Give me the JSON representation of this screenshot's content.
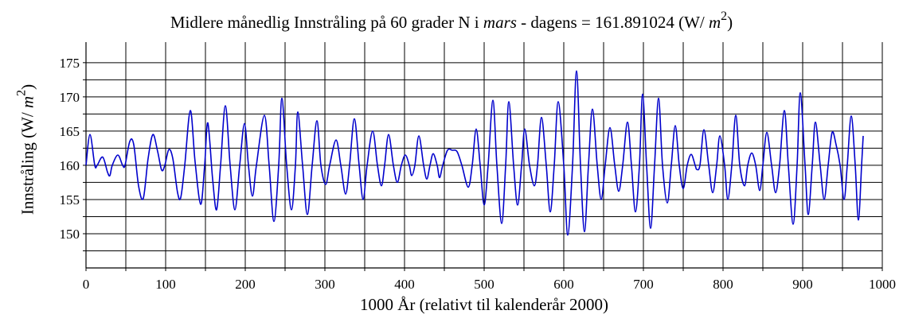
{
  "chart_data": {
    "type": "line",
    "title_prefix": "Midlere månedlig Innstråling på 60 grader N i ",
    "title_month": "mars",
    "title_suffix": " - dagens = 161.891024 (W/ ",
    "title_unit": "m",
    "title_exp": "2",
    "title_close": ")",
    "xlabel": "1000 År (relativt til kalenderår 2000)",
    "ylabel_text": "Innstråling  (W/ ",
    "ylabel_unit": "m",
    "ylabel_exp": "2",
    "ylabel_close": ")",
    "xlim": [
      0,
      1000
    ],
    "ylim": [
      145,
      178
    ],
    "x_ticks": [
      0,
      100,
      200,
      300,
      400,
      500,
      600,
      700,
      800,
      900,
      1000
    ],
    "y_ticks": [
      150,
      155,
      160,
      165,
      170,
      175
    ],
    "grid": true,
    "series_color": "#0000cc",
    "series": [
      {
        "name": "",
        "points": [
          [
            0,
            160
          ],
          [
            5,
            164.5
          ],
          [
            11,
            160
          ],
          [
            14,
            160
          ],
          [
            21,
            161.2
          ],
          [
            27,
            159
          ],
          [
            30,
            158.5
          ],
          [
            33,
            160
          ],
          [
            40,
            161.5
          ],
          [
            46,
            160
          ],
          [
            49,
            160
          ],
          [
            55,
            163.5
          ],
          [
            60,
            163
          ],
          [
            66,
            157
          ],
          [
            72,
            155.2
          ],
          [
            78,
            161
          ],
          [
            84,
            164.5
          ],
          [
            90,
            162
          ],
          [
            95,
            159.3
          ],
          [
            99,
            160
          ],
          [
            104,
            162.3
          ],
          [
            109,
            161
          ],
          [
            115,
            156
          ],
          [
            119,
            155.3
          ],
          [
            124,
            160
          ],
          [
            131,
            168
          ],
          [
            137,
            160.5
          ],
          [
            144,
            154.3
          ],
          [
            149,
            160
          ],
          [
            153,
            166.2
          ],
          [
            159,
            158
          ],
          [
            164,
            153.5
          ],
          [
            169,
            160
          ],
          [
            175,
            168.7
          ],
          [
            181,
            160
          ],
          [
            187,
            153.5
          ],
          [
            193,
            160
          ],
          [
            199,
            166.1
          ],
          [
            204,
            160
          ],
          [
            209,
            155.5
          ],
          [
            214,
            160
          ],
          [
            224,
            167.3
          ],
          [
            230,
            160
          ],
          [
            236,
            151.8
          ],
          [
            242,
            160
          ],
          [
            246,
            169.8
          ],
          [
            252,
            160
          ],
          [
            258,
            153.5
          ],
          [
            263,
            160
          ],
          [
            266,
            167.8
          ],
          [
            272,
            160
          ],
          [
            278,
            152.8
          ],
          [
            284,
            160
          ],
          [
            290,
            166.5
          ],
          [
            295,
            160
          ],
          [
            301,
            157.2
          ],
          [
            306,
            160
          ],
          [
            314,
            163.7
          ],
          [
            320,
            160
          ],
          [
            326,
            155.8
          ],
          [
            331,
            160
          ],
          [
            337,
            166.8
          ],
          [
            343,
            160
          ],
          [
            348,
            155
          ],
          [
            353,
            160
          ],
          [
            360,
            165
          ],
          [
            366,
            160
          ],
          [
            371,
            157
          ],
          [
            375,
            160
          ],
          [
            380,
            164.5
          ],
          [
            386,
            160
          ],
          [
            391,
            157.5
          ],
          [
            396,
            160
          ],
          [
            401,
            161.5
          ],
          [
            406,
            160
          ],
          [
            409,
            158.5
          ],
          [
            413,
            160
          ],
          [
            418,
            164.3
          ],
          [
            424,
            160
          ],
          [
            428,
            158
          ],
          [
            432,
            160
          ],
          [
            436,
            161.7
          ],
          [
            441,
            160
          ],
          [
            444,
            158.2
          ],
          [
            448,
            160
          ],
          [
            454,
            162.2
          ],
          [
            460,
            162.2
          ],
          [
            466,
            162
          ],
          [
            472,
            160
          ],
          [
            480,
            156.8
          ],
          [
            485,
            160
          ],
          [
            490,
            165.3
          ],
          [
            495,
            160
          ],
          [
            500,
            154.2
          ],
          [
            505,
            160
          ],
          [
            511,
            169.5
          ],
          [
            516,
            160
          ],
          [
            522,
            151.5
          ],
          [
            527,
            160
          ],
          [
            531,
            169.3
          ],
          [
            537,
            160
          ],
          [
            542,
            154.2
          ],
          [
            547,
            160
          ],
          [
            551,
            165.3
          ],
          [
            557,
            160
          ],
          [
            563,
            157
          ],
          [
            567,
            160
          ],
          [
            572,
            167
          ],
          [
            578,
            160
          ],
          [
            583,
            153.2
          ],
          [
            588,
            160
          ],
          [
            593,
            169.3
          ],
          [
            600,
            160
          ],
          [
            605,
            149.8
          ],
          [
            611,
            160
          ],
          [
            616,
            173.8
          ],
          [
            621,
            160
          ],
          [
            626,
            150.3
          ],
          [
            631,
            160
          ],
          [
            636,
            168.2
          ],
          [
            642,
            160
          ],
          [
            647,
            155
          ],
          [
            652,
            160
          ],
          [
            658,
            165.5
          ],
          [
            664,
            160
          ],
          [
            669,
            156.2
          ],
          [
            674,
            160
          ],
          [
            680,
            166.3
          ],
          [
            685,
            160
          ],
          [
            690,
            153.2
          ],
          [
            695,
            160
          ],
          [
            699,
            170.4
          ],
          [
            704,
            160
          ],
          [
            709,
            150.8
          ],
          [
            714,
            160
          ],
          [
            719,
            169.8
          ],
          [
            724,
            160
          ],
          [
            730,
            154.5
          ],
          [
            735,
            160
          ],
          [
            740,
            165.8
          ],
          [
            745,
            160
          ],
          [
            750,
            156.6
          ],
          [
            755,
            160
          ],
          [
            760,
            161.6
          ],
          [
            765,
            160
          ],
          [
            767,
            159.4
          ],
          [
            771,
            160
          ],
          [
            776,
            165.2
          ],
          [
            782,
            160
          ],
          [
            787,
            156
          ],
          [
            792,
            160
          ],
          [
            796,
            164.3
          ],
          [
            802,
            160
          ],
          [
            806,
            155
          ],
          [
            811,
            160
          ],
          [
            816,
            167.3
          ],
          [
            821,
            160
          ],
          [
            827,
            157
          ],
          [
            831,
            160
          ],
          [
            836,
            161.8
          ],
          [
            841,
            160
          ],
          [
            846,
            156.3
          ],
          [
            850,
            160
          ],
          [
            855,
            164.8
          ],
          [
            861,
            160
          ],
          [
            866,
            156
          ],
          [
            871,
            160
          ],
          [
            877,
            168
          ],
          [
            882,
            160
          ],
          [
            888,
            151.4
          ],
          [
            893,
            160
          ],
          [
            897,
            170.6
          ],
          [
            903,
            160
          ],
          [
            907,
            152.8
          ],
          [
            912,
            160
          ],
          [
            916,
            166.3
          ],
          [
            922,
            160
          ],
          [
            927,
            155
          ],
          [
            932,
            160
          ],
          [
            937,
            164.8
          ],
          [
            942,
            163
          ],
          [
            947,
            160
          ],
          [
            952,
            155
          ],
          [
            956,
            160
          ],
          [
            961,
            167.2
          ],
          [
            966,
            160
          ],
          [
            970,
            152
          ],
          [
            974,
            160
          ],
          [
            976,
            164.3
          ]
        ]
      }
    ]
  }
}
